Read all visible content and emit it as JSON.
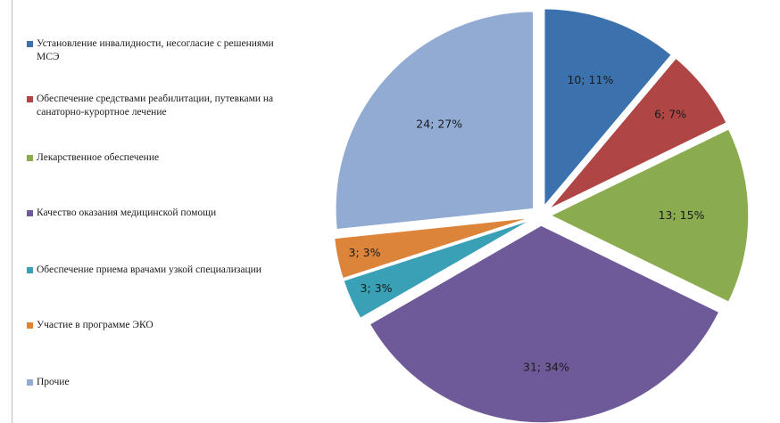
{
  "chart_data": {
    "type": "pie",
    "legend_position": "left",
    "exploded": true,
    "slices": [
      {
        "name": "Установление инвалидности, несогласие с решениями МСЭ",
        "value": 10,
        "percent": 11,
        "label": "10; 11%",
        "color": "#3b72ae"
      },
      {
        "name": "Обеспечение средствами реабилитации, путевками на санаторно-курортное лечение",
        "value": 6,
        "percent": 7,
        "label": "6; 7%",
        "color": "#b04545"
      },
      {
        "name": "Лекарственное обеспечение",
        "value": 13,
        "percent": 15,
        "label": "13; 15%",
        "color": "#8aac4f"
      },
      {
        "name": "Качество оказания медицинской помощи",
        "value": 31,
        "percent": 34,
        "label": "31; 34%",
        "color": "#6e5a99"
      },
      {
        "name": "Обеспечение приема врачами узкой специализации",
        "value": 3,
        "percent": 3,
        "label": "3; 3%",
        "color": "#3aa0b5"
      },
      {
        "name": "Участие в программе ЭКО",
        "value": 3,
        "percent": 3,
        "label": "3; 3%",
        "color": "#dd843b"
      },
      {
        "name": "Прочие",
        "value": 24,
        "percent": 27,
        "label": "24; 27%",
        "color": "#91abd3"
      }
    ]
  }
}
